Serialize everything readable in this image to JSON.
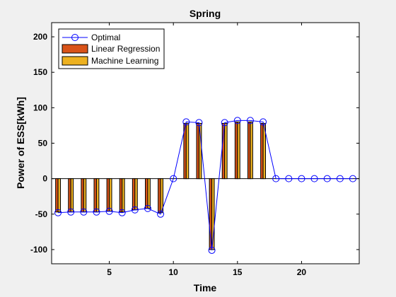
{
  "chart_data": {
    "type": "bar",
    "title": "Spring",
    "xlabel": "Time",
    "ylabel": "Power of ESS[kWh]",
    "xlim": [
      0.5,
      24.5
    ],
    "ylim": [
      -120,
      220
    ],
    "xticks": [
      5,
      10,
      15,
      20
    ],
    "yticks": [
      -100,
      -50,
      0,
      50,
      100,
      150,
      200
    ],
    "grid": false,
    "legend_position": "top-left",
    "x": [
      1,
      2,
      3,
      4,
      5,
      6,
      7,
      8,
      9,
      10,
      11,
      12,
      13,
      14,
      15,
      16,
      17,
      18,
      19,
      20,
      21,
      22,
      23,
      24
    ],
    "series": [
      {
        "name": "Optimal",
        "kind": "line",
        "marker": "circle",
        "color": "#0000ff",
        "values": [
          -48,
          -47,
          -47,
          -47,
          -46,
          -48,
          -44,
          -42,
          -50,
          0,
          80,
          79,
          -101,
          79,
          82,
          82,
          80,
          0,
          0,
          0,
          0,
          0,
          0,
          0
        ]
      },
      {
        "name": "Linear Regression",
        "kind": "bar",
        "color": "#d95319",
        "values": [
          -47,
          -47,
          -47,
          -47,
          -46,
          -47,
          -44,
          -42,
          -48,
          0,
          78,
          78,
          -100,
          78,
          80,
          80,
          78,
          0,
          0,
          0,
          0,
          0,
          0,
          0
        ]
      },
      {
        "name": "Machine Learning",
        "kind": "bar",
        "color": "#edb120",
        "values": [
          -47,
          -47,
          -47,
          -47,
          -46,
          -47,
          -44,
          -42,
          -48,
          0,
          78,
          78,
          -100,
          78,
          80,
          80,
          78,
          0,
          0,
          0,
          0,
          0,
          0,
          0
        ]
      }
    ]
  }
}
